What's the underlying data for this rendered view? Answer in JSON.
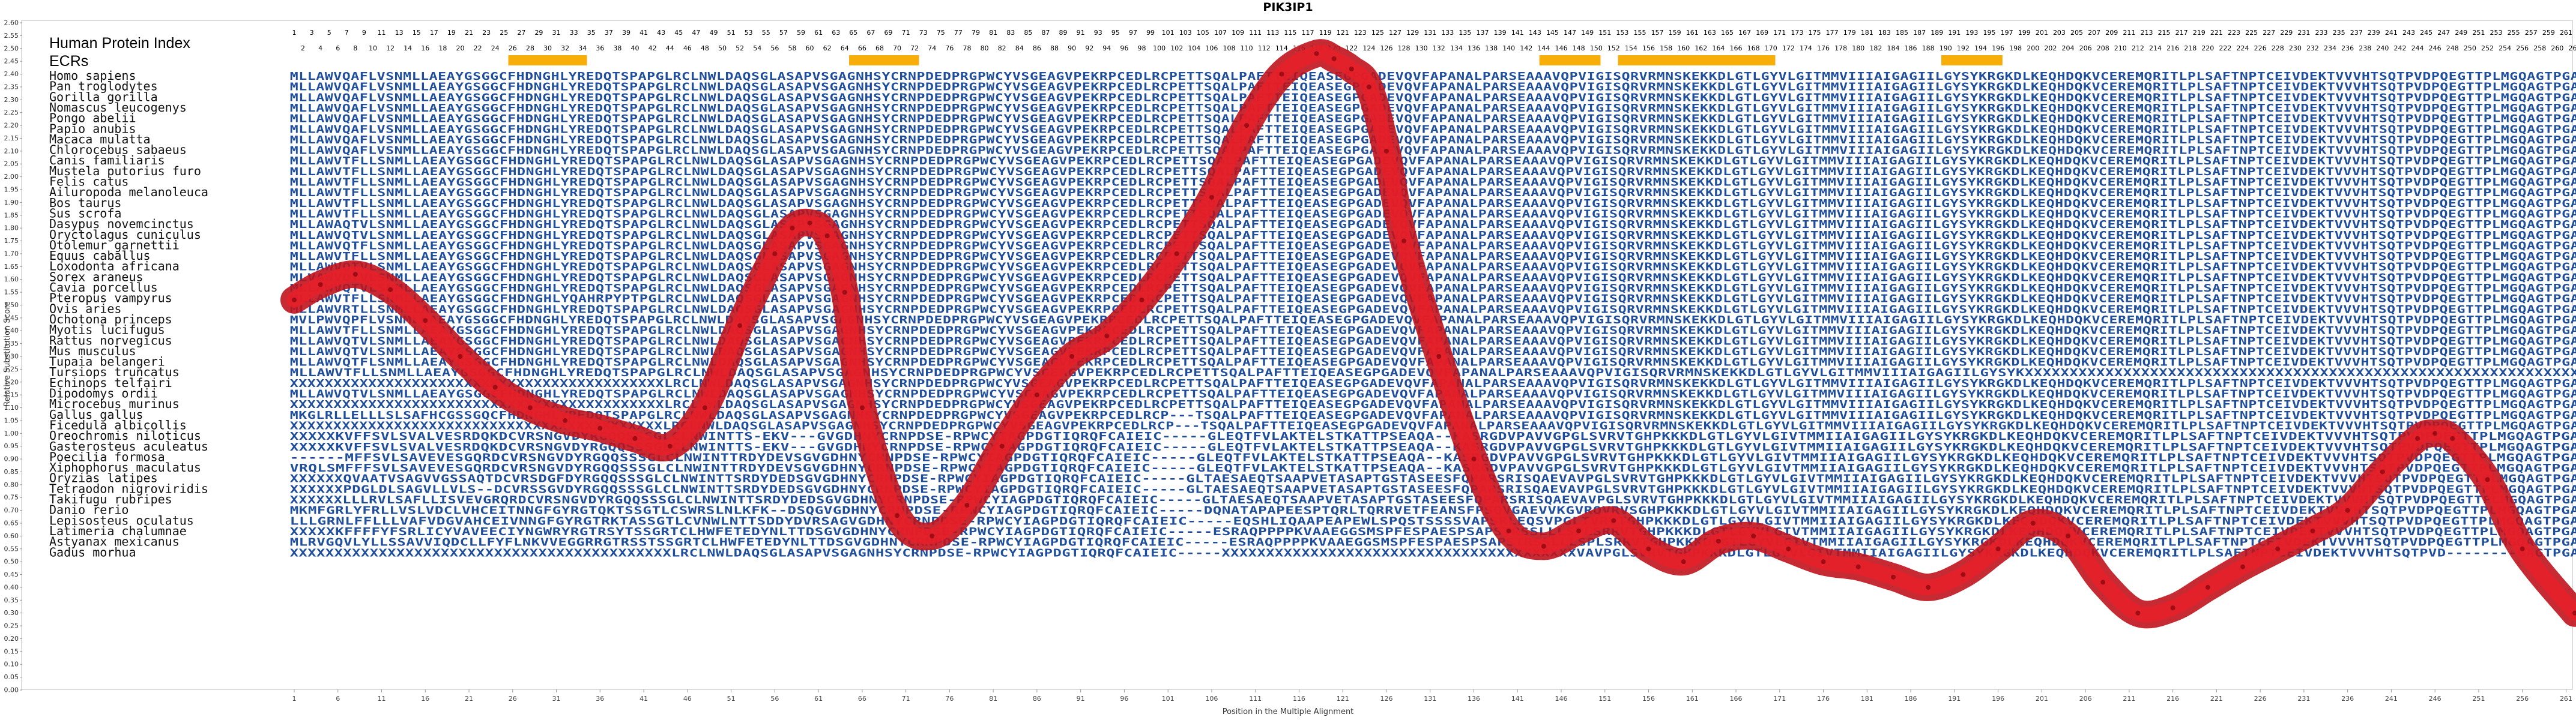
{
  "chart_data": {
    "type": "line",
    "title": "PIK3IP1",
    "xlabel": "Position in the Multiple Alignment",
    "ylabel": "Relative Substitution Score",
    "xlim": [
      1,
      262
    ],
    "ylim": [
      0,
      2.6
    ],
    "y_tick_step": 0.05,
    "x_ticks": [
      1,
      6,
      11,
      16,
      21,
      26,
      31,
      36,
      41,
      46,
      51,
      56,
      61,
      66,
      71,
      76,
      81,
      86,
      91,
      96,
      101,
      106,
      111,
      116,
      121,
      126,
      131,
      136,
      141,
      146,
      151,
      156,
      161,
      166,
      171,
      176,
      181,
      186,
      191,
      196,
      201,
      206,
      211,
      216,
      221,
      226,
      231,
      236,
      241,
      246,
      251,
      256,
      261
    ],
    "header_labels": [
      "Human Protein Index",
      "ECRs"
    ],
    "ecr_regions": [
      [
        26,
        34
      ],
      [
        65,
        72
      ],
      [
        144,
        150
      ],
      [
        153,
        170
      ],
      [
        190,
        196
      ]
    ],
    "series": [
      {
        "color": "#c0141e",
        "x": [
          1,
          4,
          8,
          12,
          16,
          20,
          24,
          28,
          32,
          36,
          40,
          44,
          48,
          52,
          56,
          58,
          60,
          62,
          64,
          66,
          70,
          74,
          78,
          82,
          86,
          90,
          94,
          98,
          102,
          106,
          110,
          114,
          118,
          120,
          122,
          124,
          126,
          128,
          132,
          136,
          140,
          144,
          148,
          152,
          156,
          160,
          164,
          168,
          172,
          176,
          180,
          184,
          188,
          192,
          196,
          200,
          204,
          208,
          212,
          216,
          220,
          224,
          228,
          232,
          236,
          240,
          244,
          246,
          248,
          252,
          256,
          262
        ],
        "y": [
          1.52,
          1.58,
          1.62,
          1.56,
          1.44,
          1.3,
          1.18,
          1.1,
          1.05,
          1.02,
          0.98,
          0.95,
          1.1,
          1.42,
          1.7,
          1.8,
          1.82,
          1.77,
          1.55,
          1.1,
          0.68,
          0.6,
          0.72,
          0.95,
          1.15,
          1.3,
          1.38,
          1.52,
          1.7,
          1.92,
          2.2,
          2.4,
          2.48,
          2.46,
          2.42,
          2.35,
          2.1,
          1.75,
          1.3,
          0.9,
          0.62,
          0.56,
          0.62,
          0.66,
          0.55,
          0.5,
          0.58,
          0.6,
          0.55,
          0.5,
          0.48,
          0.44,
          0.4,
          0.45,
          0.55,
          0.65,
          0.6,
          0.42,
          0.3,
          0.32,
          0.4,
          0.48,
          0.55,
          0.62,
          0.7,
          0.85,
          0.98,
          1.0,
          0.98,
          0.82,
          0.55,
          0.3
        ]
      }
    ]
  },
  "alignment": {
    "seq_colors": {
      "conserved": "#1f4e9c",
      "variable": "#84a9d8"
    },
    "rows": [
      {
        "species": "Homo sapiens",
        "seq": "MLLAWVQAFLVSNMLLAEAYGSGGCFHDNGHLYREDQTSPAPGLRCLNWLDAQSGLASAPVSGAGNHSYCRNPDEDPRGPWCYVSGEAGVPEKRPCEDLRCPETTSQALPAFTTEIQEASEGPGADEVQVFAPANALPARSEAAAVQPVIGISQRVRMNSKEKKDLGTLGYVLGITMMVIIIAIGAGIILGYSYKRGKDLKEQHDQKVCEREMQRITLPLSAFTNPTCEIVDEKTVVVHTSQTPVDPQEGTTPLMGQAGTPGA"
      },
      {
        "species": "Pan troglodytes",
        "seq": "MLLAWVQAFLVSNMLLAEAYGSGGCFHDNGHLYREDQTSPAPGLRCLNWLDAQSGLASAPVSGAGNHSYCRNPDEDPRGPWCYVSGEAGVPEKRPCEDLRCPETTSQALPAFTTEIQEASEGPGADEVQVFAPANALPARSEAAAVQPVIGISQRVRMNSKEKKDLGTLGYVLGITMMVIIIAIGAGIILGYSYKRGKDLKEQHDQKVCEREMQRITLPLSAFTNPTCEIVDEKTVVVHTSQTPVDPQEGTTPLMGQAGTPGA"
      },
      {
        "species": "Gorilla gorilla",
        "seq": "MLLAWVQAFLVSNMLLAEAYGSGGCFHDNGHLYREDQTSPAPGLRCLNWLDAQSGLASAPVSGAGNHSYCRNPDEDPRGPWCYVSGEAGVPEKRPCEDLRCPETTSQALPAFTTEIQEASEGPGADEVQVFAPANALPARSEAAAVQPVIGISQRVRMNSKEKKDLGTLGYVLGITMMVIIIAIGAGIILGYSYKRGKDLKEQHDQKVCEREMQRITLPLSAFTNPTCEIVDEKTVVVHTSQTPVDPQEGTTPLMGQAGTPGA"
      },
      {
        "species": "Nomascus leucogenys",
        "seq": "MLLAWVQAFLVSNMLLAEAYGSGGCFHDNGHLYREDQTSPAPGLRCLNWLDAQSGLASAPVSGAGNHSYCRNPDEDPRGPWCYVSGEAGVPEKRPCEDLRCPETTSQALPAFTTEIQEASEGPGADEVQVFAPANALPARSEAAAVQPVIGISQRVRMNSKEKKDLGTLGYVLGITMMVIIIAIGAGIILGYSYKRGKDLKEQHDQKVCEREMQRITLPLSAFTNPTCEIVDEKTVVVHTSQTPVDPQEGTTPLMGQAGTPGA"
      },
      {
        "species": "Pongo abelii",
        "seq": "MLLAWVQAFLVSNMLLAEAYGSGGCFHDNGHLYREDQTSPAPGLRCLNWLDAQSGLASAPVSGAGNHSYCRNPDEDPRGPWCYVSGEAGVPEKRPCEDLRCPETTSQALPAFTTEIQEASEGPGADEVQVFAPANALPARSEAAAVQPVIGISQRVRMNSKEKKDLGTLGYVLGITMMVIIIAIGAGIILGYSYKRGKDLKEQHDQKVCEREMQRITLPLSAFTNPTCEIVDEKTVVVHTSQTPVDPQEGTTPLMGQAGTPGA"
      },
      {
        "species": "Papio anubis",
        "seq": "MLLAWVQAFLVSNMLLAEAYGSGGCFHDNGHLYREDQTSPAPGLRCLNWLDAQSGLASAPVSGAGNHSYCRNPDEDPRGPWCYVSGEAGVPEKRPCEDLRCPETTSQALPAFTTEIQEASEGPGADEVQVFAPANALPARSEAAAVQPVIGISQRVRMNSKEKKDLGTLGYVLGITMMVIIIAIGAGIILGYSYKRGKDLKEQHDQKVCEREMQRITLPLSAFTNPTCEIVDEKTVVVHTSQTPVDPQEGTTPLMGQAGTPGA"
      },
      {
        "species": "Macaca mulatta",
        "seq": "MLLAWVQAFLVSNMLLAEAYGSGGCFHDNGHLYREDQTSPAPGLRCLNWLDAQSGLASAPVSGAGNHSYCRNPDEDPRGPWCYVSGEAGVPEKRPCEDLRCPETTSQALPAFTTEIQEASEGPGADEVQVFAPANALPARSEAAAVQPVIGISQRVRMNSKEKKDLGTLGYVLGITMMVIIIAIGAGIILGYSYKRGKDLKEQHDQKVCEREMQRITLPLSAFTNPTCEIVDEKTVVVHTSQTPVDPQEGTTPLMGQAGTPGA"
      },
      {
        "species": "Chlorocebus sabaeus",
        "seq": "MLLAWVQAFLVSNMLLAEAYGSGGCFHDNGHLYREDQTSPAPGLRCLNWLDAQSGLASAPVSGAGNHSYCRNPDEDPRGPWCYVSGEAGVPEKRPCEDLRCPETTSQALPAFTTEIQEASEGPGADEVQVFAPANALPARSEAAAVQPVIGISQRVRMNSKEKKDLGTLGYVLGITMMVIIIAIGAGIILGYSYKRGKDLKEQHDQKVCEREMQRITLPLSAFTNPTCEIVDEKTVVVHTSQTPVDPQEGTTPLMGQAGTPGA"
      },
      {
        "species": "Canis familiaris",
        "seq": "MLLAWVTFLLSNMLLAEAYGSGGCFHDNGHLYREDQTSPAPGLRCLNWLDAQSGLASAPVSGAGNHSYCRNPDEDPRGPWCYVSGEAGVPEKRPCEDLRCPETTSQALPAFTTEIQEASEGPGADEVQVFAPANALPARSEAAAVQPVIGISQRVRMNSKEKKDLGTLGYVLGITMMVIIIAIGAGIILGYSYKRGKDLKEQHDQKVCEREMQRITLPLSAFTNPTCEIVDEKTVVVHTSQTPVDPQEGTTPLMGQAGTPGA"
      },
      {
        "species": "Mustela putorius furo",
        "seq": "MLLAWVTFLLSNMLLAEAYGSGGCFHDNGHLYREDQTSPAPGLRCLNWLDAQSGLASAPVSGAGNHSYCRNPDEDPRGPWCYVSGEAGVPEKRPCEDLRCPETTSQALPAFTTEIQEASEGPGADEVQVFAPANALPARSEAAAVQPVIGISQRVRMNSKEKKDLGTLGYVLGITMMVIIIAIGAGIILGYSYKRGKDLKEQHDQKVCEREMQRITLPLSAFTNPTCEIVDEKTVVVHTSQTPVDPQEGTTPLMGQAGTPGA"
      },
      {
        "species": "Felis catus",
        "seq": "MLLAWVTFLLSNMLLAEAYGSGGCFHDNGHLYREDQTSPAPGLRCLNWLDAQSGLASAPVSGAGNHSYCRNPDEDPRGPWCYVSGEAGVPEKRPCEDLRCPETTSQALPAFTTEIQEASEGPGADEVQVFAPANALPARSEAAAVQPVIGISQRVRMNSKEKKDLGTLGYVLGITMMVIIIAIGAGIILGYSYKRGKDLKEQHDQKVCEREMQRITLPLSAFTNPTCEIVDEKTVVVHTSQTPVDPQEGTTPLMGQAGTPGA"
      },
      {
        "species": "Ailuropoda melanoleuca",
        "seq": "MLLAWVTFLLSNMLLAEAYGSGGCFHDNGHLYREDQTSPAPGLRCLNWLDAQSGLASAPVSGAGNHSYCRNPDEDPRGPWCYVSGEAGVPEKRPCEDLRCPETTSQALPAFTTEIQEASEGPGADEVQVFAPANALPARSEAAAVQPVIGISQRVRMNSKEKKDLGTLGYVLGITMMVIIIAIGAGIILGYSYKRGKDLKEQHDQKVCEREMQRITLPLSAFTNPTCEIVDEKTVVVHTSQTPVDPQEGTTPLMGQAGTPGA"
      },
      {
        "species": "Bos taurus",
        "seq": "MLLAWVTFLLSNMLLAEAYGSGGCFHDNGHLYREDQTSPAPGLRCLNWLDAQSGLASAPVSGAGNHSYCRNPDEDPRGPWCYVSGEAGVPEKRPCEDLRCPETTSQALPAFTTEIQEASEGPGADEVQVFAPANALPARSEAAAVQPVIGISQRVRMNSKEKKDLGTLGYVLGITMMVIIIAIGAGIILGYSYKRGKDLKEQHDQKVCEREMQRITLPLSAFTNPTCEIVDEKTVVVHTSQTPVDPQEGTTPLMGQAGTPGA"
      },
      {
        "species": "Sus scrofa",
        "seq": "MLLAWVTFLLSNMLLAEAYGSGGCFHDNGHLYREDQTSPAPGLRCLNWLDAQSGLASAPVSGAGNHSYCRNPDEDPRGPWCYVSGEAGVPEKRPCEDLRCPETTSQALPAFTTEIQEASEGPGADEVQVFAPANALPARSEAAAVQPVIGISQRVRMNSKEKKDLGTLGYVLGITMMVIIIAIGAGIILGYSYKRGKDLKEQHDQKVCEREMQRITLPLSAFTNPTCEIVDEKTVVVHTSQTPVDPQEGTTPLMGQAGTPGA"
      },
      {
        "species": "Dasypus novemcinctus",
        "seq": "MLLAWAQTVLSNMLLAEAYGSGGCFHDNGHLYREDQTSPAPGLRCLNWLDAQSGLASAPVSGAGNHSYCRNPDEDPRGPWCYVSGEAGVPEKRPCEDLRCPETTSQALPAFTTEIQEASEGPGADEVQVFAPANALPARSEAAAVQPVIGISQRVRMNSKEKKDLGTLGYVLGITMMVIIIAIGAGIILGYSYKRGKDLKEQHDQKVCEREMQRITLPLSAFTNPTCEIVDEKTVVVHTSQTPVDPQEGTTPLMGQAGTPGA"
      },
      {
        "species": "Oryctolagus cuniculus",
        "seq": "MLLAWVQTVLSNMLLAEAYGSGGCFHDNGHLYREDQTSPAPGLRCLNWLDAQSGLASAPVSGAGNHSYCRNPDEDPRGPWCYVSGEAGVPEKRPCEDLRCPETTSQALPAFTTEIQEASEGPGADEVQVFAPANALPARSEAAAVQPVIGISQRVRMNSKEKKDLGTLGYVLGITMMVIIIAIGAGIILGYSYKRGKDLKEQHDQKVCEREMQRITLPLSAFTNPTCEIVDEKTVVVHTSQTPVDPQEGTTPLMGQAGTPGA"
      },
      {
        "species": "Otolemur garnettii",
        "seq": "MLLAWVQTFLSNMLLAEAYGSGGCFHDNGHLYREDQTSPAPGLRCLNWLDAQSGLASAPVSGAGNHSYCRNPDEDPRGPWCYVSGEAGVPEKRPCEDLRCPETTSQALPAFTTEIQEASEGPGADEVQVFAPANALPARSEAAAVQPVIGISQRVRMNSKEKKDLGTLGYVLGITMMVIIIAIGAGIILGYSYKRGKDLKEQHDQKVCEREMQRITLPLSAFTNPTCEIVDEKTVVVHTSQTPVDPQEGTTPLMGQAGTPGA"
      },
      {
        "species": "Equus caballus",
        "seq": "MLLAWVTFLLSNMLLAEAYGSGGCFHDNGHLYREDQTSPAPGLRCLNWLDAQSGLASAPVSGAGNHSYCRNPDEDPRGPWCYVSGEAGVPEKRPCEDLRCPETTSQALPAFTTEIQEASEGPGADEVQVFAPANALPARSEAAAVQPVIGISQRVRMNSKEKKDLGTLGYVLGITMMVIIIAIGAGIILGYSYKRGKDLKEQHDQKVCEREMQRITLPLSAFTNPTCEIVDEKTVVVHTSQTPVDPQEGTTPLMGQAGTPGA"
      },
      {
        "species": "Loxodonta africana",
        "seq": "MLLAWVQTVLSNMLLAEAYGSGGCFHDNGHLYREDQTSPAPGLRCLNWLDAQSGLASAPVSGAGNHSYCRNPDEDPRGPWCYVSGEAGVPEKRPCEDLRCPETTSQALPAFTTEIQEASEGPGADEVQVFAPANALPARSEAAAVQPVIGISQRVRMNSKEKKDLGTLGYVLGITMMVIIIAIGAGIILGYSYKRGKDLKEQHDQKVCEREMQRITLPLSAFTNPTCEIVDEKTVVVHTSQTPVDPQEGTTPLMGQAGTPGA"
      },
      {
        "species": "Sorex araneus",
        "seq": "MLVAWVQTVLSNMLLAEAYGSGGCFHDNGHLYREDQTSPAPGLRCLNWLDAQSGLASAPVSGAGNHSYCRNPDEDPRGPWCYVSGEAGVPEKRPCEDLRCPETTSQALPAFTTEIQEASEGPGADEVQVFAPANALPARSEAAAVQPVIGISQRVRMNSKEKKDLGTLGYVLGITMMVIIIAIGAGIILGYSYKRGKDLKEQHDQKVCEREMQRITLPLSAFTNPTCEIVDEKTVVVHTSQTPVDPQEGTTPLMGQAGTPGA"
      },
      {
        "species": "Cavia porcellus",
        "seq": "MLLAWVQTVLSNMLLAEAYGSGGCFHDNGHLYREDQTSPAPGLRCLNWLDAQSGLASAPVSGAGNHSYCRNPDEDPRGPWCYVSGEAGVPEKRPCEDLRCPETTSQALPAFTTEIQEASEGPGADEVQVFAPANALPARSEAAAVQPVIGISQRVRMNSKEKKDLGTLGYVLGITMMVIIIAIGAGIILGYSYKRGKDLKEQHDQKVCEREMQRITLPLSAFTNPTCEIVDEKTVVVHTSQTPVDPQEGTTPLMGQAGTPGA"
      },
      {
        "species": "Pteropus vampyrus",
        "seq": "MLLAWVTFLLSNMLLAEAYGSGGCFHDNGHLYQAHRPYPTPGLRCLNWLDAQSGLASAPVSGAGNHSYCRNPDEDPRGPWCYVSGEAGVPEKRPCEDLRCPETTSQALPAFTTEIQEASEGPGADEVQVFAPANALPARSEAAAVQPVIGISQRVRMNSKEKKDLGTLGYVLGITMMVIIIAIGAGIILGYSYKRGKDLKEQHDQKVCEREMQRITLPLSAFTNPTCEIVDEKTVVVHTSQTPVDPQEGTTPLMGQAGTPGA"
      },
      {
        "species": "Ovis aries",
        "seq": "MLLAWVRTLLSNMLLAEAYGSGGCFHDNGHLYREDQTSPAPGLRCLNWLDAQSGLASAPVSGAGNHSYCRNPDEDPRGPWCYVSGEAGVPEKRPCEDLRCPETTSQALPAFTTEIQEASEGPGADEVQVFAPANALPARSEAAAVQPVIGISQRVRMNSKEKKDLGTLGYVLGITMMVIIIAIGAGIILGYSYKRGKDLKEQHDQKVCEREMQRITLPLSAFTNPTCEIVDEKTVVVHTSQTPVDPQEGTTPLMGQAGTPGA"
      },
      {
        "species": "Ochotona princeps",
        "seq": "MVLPWVQPFLVSNMLLAEAYGSGGCFHDNGHLYREDQTSPAPGLRCLNWLDAQSGLASAPVSGAGNHSYCRNPDEDPRGPWCYVSGEAGVPEKRPCEDLRCPETTSQALPAFTTEIQEASEGPGADEVQVFAPANALPARSEAAAVQPVIGISQRVRMNSKEKKDLGTLGYVLGITMMVIIIAIGAGIILGYSYKRGKDLKEQHDQKVCEREMQRITLPLSAFTNPTCEIVDEKTVVVHTSQTPVDPQEGTTPLMGQAGTPGA"
      },
      {
        "species": "Myotis lucifugus",
        "seq": "MLLAWVTFLLSNMLLAEAYGSGGCFHDNGHLYREDQTSPAPGLRCLNWLDAQSGLASAPVSGAGNHSYCRNPDEDPRGPWCYVSGEAGVPEKRPCEDLRCPETTSQALPAFTTEIQEASEGPGADEVQVFAPANALPARSEAAAVQPVIGISQRVRMNSKEKKDLGTLGYVLGITMMVIIIAIGAGIILGYSYKRGKDLKEQHDQKVCEREMQRITLPLSAFTNPTCEIVDEKTVVVHTSQTPVDPQEGTTPLMGQAGTPGA"
      },
      {
        "species": "Rattus norvegicus",
        "seq": "MLLAWVQTVLSNMLLAEAYGSGGCFHDNGHLYREDQTSPAPGLRCLNWLDAQSGLASAPVSGAGNHSYCRNPDEDPRGPWCYVSGEAGVPEKRPCEDLRCPETTSQALPAFTTEIQEASEGPGADEVQVFAPANALPARSEAAAVQPVIGISQRVRMNSKEKKDLGTLGYVLGITMMVIIIAIGAGIILGYSYKRGKDLKEQHDQKVCEREMQRITLPLSAFTNPTCEIVDEKTVVVHTSQTPVDPQEGTTPLMGQAGTPGA"
      },
      {
        "species": "Mus musculus",
        "seq": "MLLAWVQTVLSNMLLAEAYGSGGCFHDNGHLYREDQTSPAPGLRCLNWLDAQSGLASAPVSGAGNHSYCRNPDEDPRGPWCYVSGEAGVPEKRPCEDLRCPETTSQALPAFTTEIQEASEGPGADEVQVFAPANALPARSEAAAVQPVIGISQRVRMNSKEKKDLGTLGYVLGITMMVIIIAIGAGIILGYSYKRGKDLKEQHDQKVCEREMQRITLPLSAFTNPTCEIVDEKTVVVHTSQTPVDPQEGTTPLMGQAGTPGA"
      },
      {
        "species": "Tupaia belangeri",
        "seq": "MLLAWVQTFLSNMLLAEAYGSGGCFHDNGHLYREDQTSPAPGLRCLNWLDAQSGLASAPVSGAGNHSYCRNPDEDPRGPWCYVSGEAGVPEKRPCEDLRCPETTSQALPAFTTEIQEASEGPGADEVQVFAPANALPARSEAAAVQPVIGISQRVRMNSKEKKDLGTLGYVLGITMMVIIIAIGAGIILGYSYKRGKDLKEQHDQKVCEREMQRITLPLSAFTNPTCEIVDEKTVVVHTSQTPVDPQEGTTPLMGQAGTPGA"
      },
      {
        "species": "Tursiops truncatus",
        "seq": "MLLAWVTFLLSNMLLAEAYGSGGCFHDNGHLYREDQTSPAPGLRCLNWLDAQSGLASAPVSGAGNHSYCRNPDEDPRGPWCYVSGEAGVPEKRPCEDLRCPETTSQALPAFTTEIQEASEGPGADEVQVFAPANALPARSEAAAVQPVIGISQRVRMNSKEKKDLGTLGYVLGITMMVIIIAIGAGIILGYSYKXXXXXXXXXXXXXXXXXXXXXXXXXXXXXXXXXXXXXXXXXXXXXXXXXXXXXXXXXXXXXX"
      },
      {
        "species": "Echinops telfairi",
        "seq": "XXXXXXXXXXXXXXXXXXXXXXXXXXXXXXXXXXXXXXXXXXXLRCLNWLDAQSGLASAPVSGAGNHSYCRNPDEDPRGPWCYVSGEAGVPEKRPCEDLRCPETTSQALPAFTTEIQEASEGPGADEVQVFAPANALPARSEAAAVQPVIGISQRVRMNSKEKKDLGTLGYVLGITMMVIIIAIGAGIILGYSYKRGKDLKEQHDQKVCEREMQRITLPLSAFTNPTCEIVDEKTVVVHTSQTPVDPQEGTTPLMGQAGTPGA"
      },
      {
        "species": "Dipodomys ordii",
        "seq": "MLLAWVQTVLSNMLLAEAYGSGGCFHDNGHLYREDQTSPAPGLRCLNWLDAQSGLASAPVSGAGNHSYCRNPDEDPRGPWCYVSGEAGVPEKRPCEDLRCPETTSQALPAFTTEIQEASEGPGADEVQVFAPANALPARSEAAAVQPVIGISQRVRMNSKEKKDLGTLGYVLGITMMVIIIAIGAGIILGYSYKRGKDLKEQHDQKVCEREMQRITLPLSAFTNPTCEIVDEKTVVVHTSQTPVDPQEGTTPLMGQAGTPGA"
      },
      {
        "species": "Microcebus murinus",
        "seq": "XXXXXXXXXXXXXXXXXXXXXXXXXXXXXXXXXXXXXXXXXXXLRCLNWLDAQSGLASAPVSGAGNHSYCRNPDEDPRGPWCYVSGEAGVPEKRPCEDLRCPETTSQALPAFTTEIQEASEGPGADEVQVFAPANALPARSEAAAVQPVIGISQRVRMNSKEKKDLGTLGYVLGITMMVIIIAIGAGIILGYSYKRGKDLKEQHDQKVCEREMQRITLPLSAFTNPTCEIVDEKTVVVHTSQTPVDPQEGTTPLMGQAGTPGA"
      },
      {
        "species": "Gallus gallus",
        "seq": "MKGLRLLELLLSLSAFHCGSSGQCFHDNGHLYREDQTSPAPGLRCLNWLDAQSGLASAPVSGAGNHSYCRNPDEDPRGPWCYVSGEAGVPEKRPCEDLRCP---TSQALPAFTTEIQEASEGPGADEVQVFAPANALPARSEAAAVQPVIGISQRVRMNSKEKKDLGTLGYVLGITMMVIIIAIGAGIILGYSYKRGKDLKEQHDQKVCEREMQRITLPLSAFTNPTCEIVDEKTVVVHTSQTPVDPQEGTTPLMGQAGTPGA"
      },
      {
        "species": "Ficedula albicollis",
        "seq": "XXXXXXXXXXXXXXXXXXXXXXXXXXXXXXXXXXXXXXXXXXXLRCLNWLDAQSGLASAPVSGAGNHSYCRNPDEDPRGPWCYVSGEAGVPEKRPCEDLRCP---TSQALPAFTTEIQEASEGPGADEVQVFAPANALPARSEAAAVQPVIGISQRVRMNSKEKKDLGTLGYVLGITMMVIIIAIGAGIILGYSYKRGKDLKEQHDQKVCEREMQRITLPLSAFTNPTCEIVDEKTVVVHTSQTPVDPQEGTTPLMGQAGTPGA"
      },
      {
        "species": "Oreochromis niloticus",
        "seq": "XXXXXKVFFSVLSVALVESRDQKDCVRSNGVDYRGQQSSSGLCLNWINTTS-EKV---GVGDHNYCRNPDSE-RPWCYIAGPDGTIQRQFCAIEIC-----GLEQTFVLAKTELSTKATTPSEAQA--KASRGDVPAVVGPGLSVRVTGHPKKKDLGTLGYVLGIVTMMIIAIGAGIILGYSYKRGKDLKEQHDQKVCEREMQRITLPLSAFTNPTCEIVDEKTVVVHTSQTPVDPQEGTTPLMGQAGTPGA"
      },
      {
        "species": "Gasterosteus aculeatus",
        "seq": "XXXXXKVFFSVLSVALVESRDQKDCVRSNGVDYRGQQSSSGLCLNWINTTS-EKV---GVGDHNYCRNPDSE-RPWCYIAGPDGTIQRQFCAIEIC-----GLEQTFVLAKTELSTKATTPSEAQA--KASRGDVPAVVGPGLSVRVTGHPKKKDLGTLGYVLGIVTMMIIAIGAGIILGYSYKRGKDLKEQHDQKVCEREMQRITLPLSAFTNPTCEIVDEKTVVVHTSQTPVDPQEGTTPLMGQAGTPGA"
      },
      {
        "species": "Poecilia formosa",
        "seq": "------MFFSVLSAVEVESGQRDCVRSNGVDYRGQQSSSGLCLNWINTTRDYDEVSGVGDHNYCRNPDSE-RPWCYIAGPDGTIQRQFCAIEIC-----GLEQTFVLAKTELSTKATTPSEAQA--KASRGDVPAVVGPGLSVRVTGHPKKKDLGTLGYVLGIVTMMIIAIGAGIILGYSYKRGKDLKEQHDQKVCEREMQRITLPLSAFTNPTCEIVDEKTVVVHTSQTPVDPQEGTTPLMGQAGTPGA"
      },
      {
        "species": "Xiphophorus maculatus",
        "seq": "VRQLSMFFFSVLSAVEVESGQRDCVRSNGVDYRGQQSSSGLCLNWINTTRDYDEVSGVGDHNYCRNPDSE-RPWCYIAGPDGTIQRQFCAIEIC-----GLEQTFVLAKTELSTKATTPSEAQA--KASRGDVPAVVGPGLSVRVTGHPKKKDLGTLGYVLGIVTMMIIAIGAGIILGYSYKRGKDLKEQHDQKVCEREMQRITLPLSAFTNPTCEIVDEKTVVVHTSQTPVDPQEGTTPLMGQAGTPGA"
      },
      {
        "species": "Oryzias latipes",
        "seq": "XXXXXXQVAATVSAGVVGSSAQTDCVRSDGFDYRGQQSSSGLCLNWINTTSRDYDEDSGVGDHNYCRNPDSE-RPWCYIAGPDGTIQRQFCAIEIC-----GLTAESAEQTSAAPVETASAPTGSTASEESFQPARSRISQAEVAVPGLSVRVTGHPKKKDLGTLGYVLGIVTMMIIAIGAGIILGYSYKRGKDLKEQHDQKVCEREMQRITLPLSAFTNPTCEIVDEKTVVVHTSQTPVDPQEGTTPLMGQAGTPGA"
      },
      {
        "species": "Tetraodon nigroviridis",
        "seq": "XXXXXXPDGLDLSAGVLLVLS--DCVRSSGVDYRGQQSSSGLCLNWINTTSRDYDEDSGVGDHNYCRNPDSE-RPWCYIAGPDGTIQRQFCAIEIC-----GLTAESAEQTSAAPVETASAPTGSTASEESFQPARSRISQAEVAVPGLSVRVTGHPKKKDLGTLGYVLGIVTMMIIAIGAGIILGYSYKRGKDLKEQHDQKVCEREMQRITLPLSAFTNPTCEIVDEKTVVVHTSQTPVDPQEGTTPLMGQAGTPGA"
      },
      {
        "species": "Takifugu rubripes",
        "seq": "XXXXXXLLLRVLSAFLLISVEVGRQRDCVRSNGVDYRGQQSSSGLCLNWINTTSRDYDEDSGVGDHNYCRNPDSE-RPWCYIAGPDGTIQRQFCAIEIC-----GLTAESAEQTSAAPVETASAPTGSTASEESFQPARSRISQAEVAVPGLSVRVTGHPKKKDLGTLGYVLGIVTMMIIAIGAGIILGYSYKRGKDLKEQHDQKVCEREMQRITLPLSAFTNPTCEIVDEKTVVVHTSQTPVDPQEGTTPLMGQAGTPGA"
      },
      {
        "species": "Danio rerio",
        "seq": "MKMFGRLYFRLLVSLVDCLVHCEITNNGFGYRGTQKTSSGTLCSWRSLNLKFK--DSQGVGDHNYCRNPDSE-RPWCYIAGPDGTIQRQFCAIEIC-----DQNATAPAPEESPTQRLTQRRVETFEANSFPSQVGAEVVKGVRQVRVSGHPKKKDLGTLGYVLGIVTMMIIAIGAGIILGYSYKRGKDLKEQHDQKVCEREMQRITLPLSAFTNPTCEIVDEKTVVVHTSQTPVDPQEGTTPLMGQAGTPGA"
      },
      {
        "species": "Lepisosteus oculatus",
        "seq": "LLLGRNLFFLLLVAFVDGVAHCEIVNNGFGYRGTRKTASSGTLCVNWLNTTSDDYDVRSAGVGDHNYCRNPDSE-RPWCYIAGPDGTIQRQFCAIEIC-----EQSHLIQAAPEAPEWLSPQSTSSSSVAPSRLEQSVPGLTVRVTGHPKKKDLGTLGYVLGIVTMMIIAIGAGIILGYSYKRGKDLKEQHDQKVCEREMQRITLPLSAFTNPTCEIVDEKTVVVHTSQTPVDPQEGTTPLMGQAGTPGA"
      },
      {
        "species": "Latimeria chalumnae",
        "seq": "XXXXXKFFFFYFSRLICYVAVEECIYNGWRYRGTRSYTSSGRTCLHWFETEDYNLTTDSGVGDHNYCRNPDSE-RPWCYIAGPDGTIQRQFCAIEIC-----ESRAQPPPPKVAAEGGSMSPFESPAESPSAPSTRSSLLLSPLSRRVTGHPKKKDLGTLGYVLGIVTMMIIAIGAGIILGYSYKRGKDLKEQHDQKVCEREMQRITLPLSAFTNPTCEIVDEKTVVVHTSQTPVDPQEGTTPLMGQAGTPGA"
      },
      {
        "species": "Astyanax mexicanus",
        "seq": "MLRVGQVLYLLSSAVVIQDCLLFYFLNKVVEGGRRGTRSSTSSGRTCLHWFETEDYNLTTDSGVGDHNYCRNPDSE-RPWCYIAGPDGTIQRQFCAIEIC-----ESRAQPPPPKVAAEGGSMSPFESPAESPSAPSTRSSLLLSPLSRRVTGHPKKKDLGTLGYVLGIVTMMIIAIGAGIILGYSYKRGKDLKEQHDQKVCEREMQRITLPLSAFTNPTCEIVDEKTVVVHTSQTPVDPQEGTTPLMGQAGTPGA"
      },
      {
        "species": "Gadus morhua",
        "seq": "XXXXXXXXXXXXXXXXXXXXXXXXXXXXXXXXXXXXXXXXXXXLRCLNWLDAQSGLASAPVSGAGNHSYCRNPDSE-RPWCYIAGPDGTIQRQFCAIEIC-----XXXXXXXXXXXXXXXXXXXXXXXXXXXXXXXXXXXXXXXXVAVPGLSVRVTGHPKKKDLGTLGYVLGIVTMMIIAIGAGIILGYSYKRGKDLKEQHDQKVCEREMQRITLPLSAFTNPTCEIVDEKTVVVHTSQTPVD--------GAGTPGA"
      }
    ]
  }
}
